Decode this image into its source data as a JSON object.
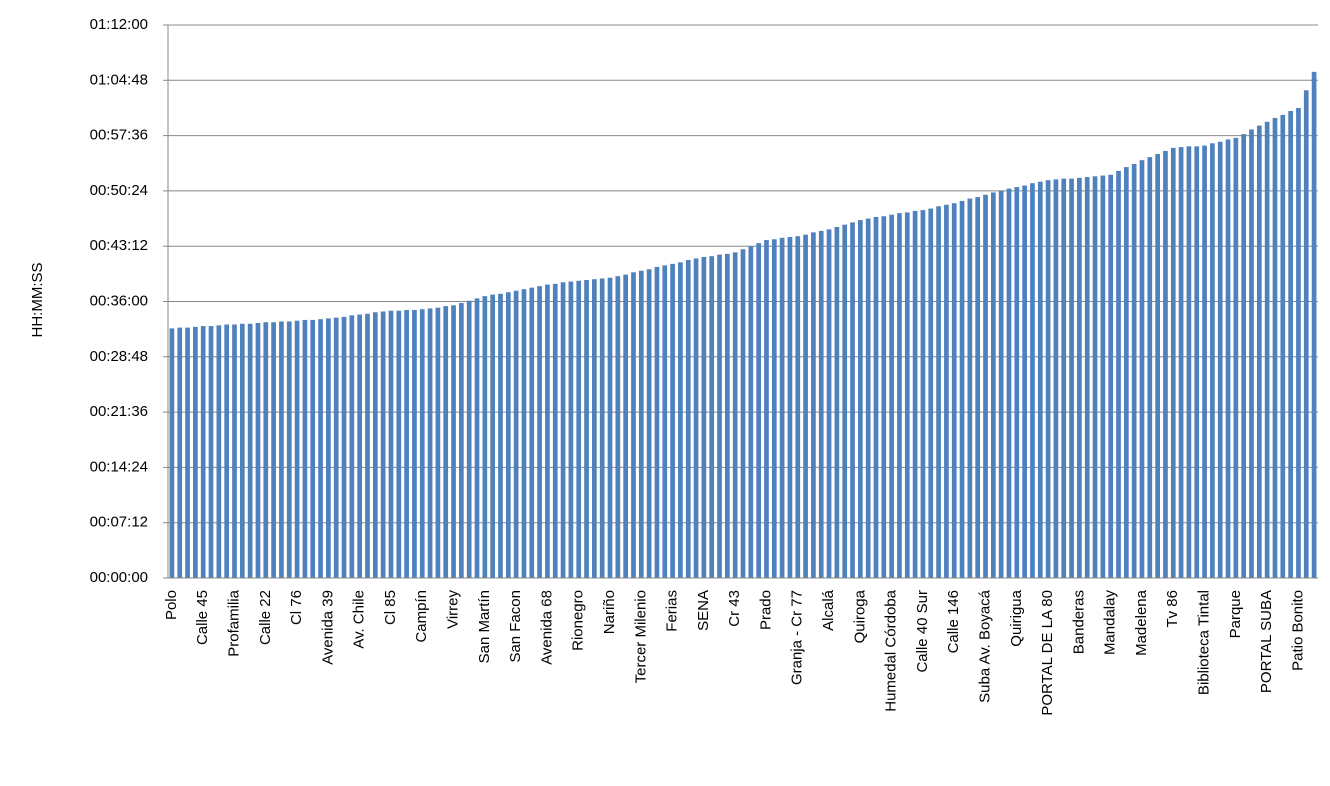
{
  "chart_data": {
    "type": "bar",
    "y_axis_label": "HH:MM:SS",
    "color": "#4f81bd",
    "grid": true,
    "ylim": [
      0,
      72
    ],
    "yticks": [
      {
        "value": 0,
        "label": "00:00:00"
      },
      {
        "value": 7.2,
        "label": "00:07:12"
      },
      {
        "value": 14.4,
        "label": "00:14:24"
      },
      {
        "value": 21.6,
        "label": "00:21:36"
      },
      {
        "value": 28.8,
        "label": "00:28:48"
      },
      {
        "value": 36,
        "label": "00:36:00"
      },
      {
        "value": 43.2,
        "label": "00:43:12"
      },
      {
        "value": 50.4,
        "label": "00:50:24"
      },
      {
        "value": 57.6,
        "label": "00:57:36"
      },
      {
        "value": 64.8,
        "label": "01:04:48"
      },
      {
        "value": 72,
        "label": "01:12:00"
      }
    ],
    "categories": [
      "Polo",
      null,
      null,
      null,
      "Calle 45",
      null,
      null,
      null,
      "Profamilia",
      null,
      null,
      null,
      "Calle 22",
      null,
      null,
      null,
      "Cl 76",
      null,
      null,
      null,
      "Avenida 39",
      null,
      null,
      null,
      "Av. Chile",
      null,
      null,
      null,
      "Cl 85",
      null,
      null,
      null,
      "Campín",
      null,
      null,
      null,
      "Virrey",
      null,
      null,
      null,
      "San Martín",
      null,
      null,
      null,
      "San Facon",
      null,
      null,
      null,
      "Avenida 68",
      null,
      null,
      null,
      "Rionegro",
      null,
      null,
      null,
      "Nariño",
      null,
      null,
      null,
      "Tercer Milenio",
      null,
      null,
      null,
      "Ferias",
      null,
      null,
      null,
      "SENA",
      null,
      null,
      null,
      "Cr 43",
      null,
      null,
      null,
      "Prado",
      null,
      null,
      null,
      "Granja - Cr 77",
      null,
      null,
      null,
      "Alcalá",
      null,
      null,
      null,
      "Quiroga",
      null,
      null,
      null,
      "Humedal Córdoba",
      null,
      null,
      null,
      "Calle 40 Sur",
      null,
      null,
      null,
      "Calle 146",
      null,
      null,
      null,
      "Suba Av. Boyacá",
      null,
      null,
      null,
      "Quirigua",
      null,
      null,
      null,
      "PORTAL DE LA 80",
      null,
      null,
      null,
      "Banderas",
      null,
      null,
      null,
      "Mandalay",
      null,
      null,
      null,
      "Madelena",
      null,
      null,
      null,
      "Tv 86",
      null,
      null,
      null,
      "Biblioteca Tintal",
      null,
      null,
      null,
      "Parque",
      null,
      null,
      null,
      "PORTAL SUBA",
      null,
      null,
      null,
      "Patio Bonito",
      null,
      null
    ],
    "values": [
      32.5,
      32.6,
      32.6,
      32.7,
      32.8,
      32.8,
      32.9,
      33.0,
      33.0,
      33.1,
      33.1,
      33.2,
      33.3,
      33.3,
      33.4,
      33.4,
      33.5,
      33.6,
      33.6,
      33.7,
      33.8,
      33.9,
      34.0,
      34.2,
      34.3,
      34.4,
      34.6,
      34.7,
      34.8,
      34.8,
      34.9,
      34.9,
      35.0,
      35.1,
      35.2,
      35.4,
      35.5,
      35.8,
      36.1,
      36.4,
      36.7,
      36.9,
      37.0,
      37.2,
      37.4,
      37.6,
      37.8,
      38.0,
      38.2,
      38.3,
      38.5,
      38.6,
      38.7,
      38.8,
      38.9,
      39.0,
      39.1,
      39.3,
      39.5,
      39.8,
      40.0,
      40.2,
      40.5,
      40.7,
      40.9,
      41.1,
      41.4,
      41.6,
      41.8,
      41.9,
      42.1,
      42.2,
      42.4,
      42.8,
      43.2,
      43.6,
      44.0,
      44.1,
      44.3,
      44.4,
      44.5,
      44.7,
      45.0,
      45.2,
      45.4,
      45.7,
      46.0,
      46.3,
      46.6,
      46.8,
      47.0,
      47.1,
      47.3,
      47.5,
      47.6,
      47.8,
      47.9,
      48.1,
      48.4,
      48.6,
      48.8,
      49.1,
      49.4,
      49.6,
      49.9,
      50.2,
      50.4,
      50.7,
      50.9,
      51.1,
      51.4,
      51.6,
      51.8,
      51.9,
      52.0,
      52.0,
      52.1,
      52.2,
      52.3,
      52.4,
      52.5,
      53.0,
      53.5,
      53.9,
      54.4,
      54.8,
      55.2,
      55.6,
      56.0,
      56.1,
      56.2,
      56.2,
      56.3,
      56.6,
      56.8,
      57.1,
      57.3,
      57.8,
      58.4,
      58.9,
      59.4,
      59.9,
      60.3,
      60.8,
      61.2,
      63.5,
      65.9
    ]
  }
}
